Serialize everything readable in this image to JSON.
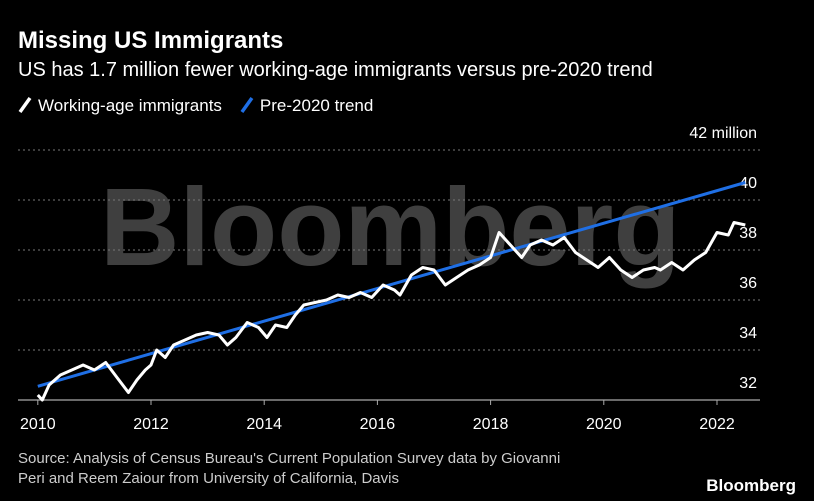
{
  "chart_data": {
    "type": "line",
    "title": "Missing US Immigrants",
    "subtitle": "US has 1.7 million fewer working-age immigrants versus pre-2020 trend",
    "watermark": "Bloomberg",
    "source_lines": [
      "Source: Analysis of Census Bureau's Current Population Survey data by Giovanni",
      "Peri and Reem Zaiour from University of California, Davis"
    ],
    "logo": "Bloomberg",
    "xlim": [
      2009.65,
      2022.76
    ],
    "xticks": [
      2010,
      2012,
      2014,
      2016,
      2018,
      2020,
      2022
    ],
    "ylim": [
      32,
      42
    ],
    "yticks": [
      32,
      34,
      36,
      38,
      40,
      {
        "value": 42,
        "label": "42 million"
      }
    ],
    "grid": true,
    "series": [
      {
        "name": "Working-age immigrants",
        "color": "#ffffff",
        "x": [
          2010.0,
          2010.08,
          2010.2,
          2010.4,
          2010.6,
          2010.8,
          2011.0,
          2011.2,
          2011.4,
          2011.6,
          2011.75,
          2011.9,
          2012.0,
          2012.1,
          2012.25,
          2012.4,
          2012.6,
          2012.8,
          2013.0,
          2013.2,
          2013.35,
          2013.5,
          2013.7,
          2013.9,
          2014.05,
          2014.2,
          2014.4,
          2014.55,
          2014.7,
          2014.9,
          2015.1,
          2015.3,
          2015.5,
          2015.7,
          2015.9,
          2016.1,
          2016.3,
          2016.4,
          2016.6,
          2016.8,
          2017.0,
          2017.2,
          2017.4,
          2017.6,
          2017.8,
          2018.0,
          2018.15,
          2018.35,
          2018.55,
          2018.7,
          2018.9,
          2019.1,
          2019.3,
          2019.5,
          2019.7,
          2019.9,
          2020.1,
          2020.3,
          2020.5,
          2020.7,
          2020.9,
          2021.0,
          2021.2,
          2021.4,
          2021.6,
          2021.8,
          2022.0,
          2022.2,
          2022.3,
          2022.5
        ],
        "values": [
          32.2,
          32.0,
          32.6,
          33.0,
          33.2,
          33.4,
          33.2,
          33.5,
          32.9,
          32.3,
          32.8,
          33.2,
          33.4,
          34.0,
          33.7,
          34.2,
          34.4,
          34.6,
          34.7,
          34.6,
          34.2,
          34.5,
          35.1,
          34.9,
          34.5,
          35.0,
          34.9,
          35.4,
          35.8,
          35.9,
          36.0,
          36.2,
          36.1,
          36.3,
          36.1,
          36.6,
          36.4,
          36.2,
          37.0,
          37.3,
          37.2,
          36.6,
          36.9,
          37.2,
          37.4,
          37.7,
          38.7,
          38.2,
          37.7,
          38.2,
          38.4,
          38.2,
          38.5,
          37.9,
          37.6,
          37.3,
          37.7,
          37.2,
          36.9,
          37.2,
          37.3,
          37.2,
          37.5,
          37.2,
          37.6,
          37.9,
          38.7,
          38.6,
          39.1,
          39.0
        ]
      },
      {
        "name": "Pre-2020 trend",
        "color": "#1f6fe5",
        "x": [
          2010.0,
          2022.5
        ],
        "values": [
          32.55,
          40.7
        ]
      }
    ]
  }
}
